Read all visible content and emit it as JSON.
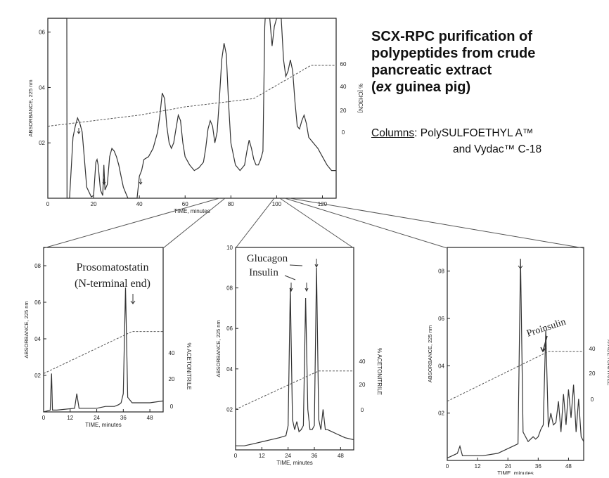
{
  "header": {
    "title_lines": [
      "SCX-RPC purification of",
      "polypeptides from crude",
      "pancreatic extract",
      "(ex guinea pig)"
    ],
    "title_italic_word": "ex",
    "columns_label": "Columns",
    "columns_line1": ": PolySULFOETHYL A™",
    "columns_line2": "and Vydac™ C-18"
  },
  "colors": {
    "trace": "#333333",
    "frame": "#222222",
    "background": "#ffffff"
  },
  "chart_data": [
    {
      "type": "line",
      "panel": "main",
      "xlabel": "TIME, minutes",
      "ylabel": "ABSORBANCE, 225 nm",
      "y2label": "% [CH3CN]",
      "xlim": [
        0,
        126
      ],
      "ylim": [
        0,
        0.65
      ],
      "y2lim": [
        -20,
        76
      ],
      "x_ticks": [
        "0",
        "20",
        "40",
        "60",
        "80",
        "100",
        "120"
      ],
      "y_ticks": [
        "02",
        "04",
        "06"
      ],
      "y2_ticks": [
        "0",
        "20",
        "40",
        "60"
      ],
      "series": [
        {
          "role": "absorbance",
          "points": [
            [
              0,
              0.65
            ],
            [
              8.3,
              0.65
            ],
            [
              8.4,
              0.0
            ],
            [
              9.5,
              0.0
            ],
            [
              11,
              0.22
            ],
            [
              12,
              0.26
            ],
            [
              13,
              0.29
            ],
            [
              14,
              0.27
            ],
            [
              15,
              0.24
            ],
            [
              16,
              0.14
            ],
            [
              17,
              0.04
            ],
            [
              19,
              0.005
            ],
            [
              20,
              0.01
            ],
            [
              21,
              0.13
            ],
            [
              21.5,
              0.14
            ],
            [
              22,
              0.12
            ],
            [
              23,
              0.03
            ],
            [
              24,
              0.01
            ],
            [
              24.5,
              0.12
            ],
            [
              25,
              0.03
            ],
            [
              26,
              0.05
            ],
            [
              27,
              0.15
            ],
            [
              28,
              0.18
            ],
            [
              29,
              0.17
            ],
            [
              30,
              0.15
            ],
            [
              31,
              0.12
            ],
            [
              32,
              0.08
            ],
            [
              33,
              0.04
            ],
            [
              34,
              0.02
            ],
            [
              35,
              0.0
            ],
            [
              39,
              0.0
            ],
            [
              40,
              0.08
            ],
            [
              41,
              0.1
            ],
            [
              42,
              0.14
            ],
            [
              44,
              0.15
            ],
            [
              46,
              0.18
            ],
            [
              48,
              0.24
            ],
            [
              49,
              0.3
            ],
            [
              50,
              0.38
            ],
            [
              51,
              0.36
            ],
            [
              52,
              0.26
            ],
            [
              53,
              0.2
            ],
            [
              54,
              0.18
            ],
            [
              55,
              0.2
            ],
            [
              56,
              0.25
            ],
            [
              57,
              0.3
            ],
            [
              58,
              0.28
            ],
            [
              59,
              0.2
            ],
            [
              60,
              0.15
            ],
            [
              62,
              0.12
            ],
            [
              64,
              0.1
            ],
            [
              66,
              0.11
            ],
            [
              68,
              0.13
            ],
            [
              69,
              0.18
            ],
            [
              70,
              0.25
            ],
            [
              71,
              0.28
            ],
            [
              72,
              0.26
            ],
            [
              73,
              0.2
            ],
            [
              74,
              0.24
            ],
            [
              75,
              0.36
            ],
            [
              76,
              0.5
            ],
            [
              77,
              0.56
            ],
            [
              78,
              0.52
            ],
            [
              79,
              0.34
            ],
            [
              80,
              0.2
            ],
            [
              82,
              0.12
            ],
            [
              84,
              0.1
            ],
            [
              86,
              0.12
            ],
            [
              87,
              0.17
            ],
            [
              88,
              0.21
            ],
            [
              89,
              0.18
            ],
            [
              90,
              0.14
            ],
            [
              91,
              0.12
            ],
            [
              92,
              0.12
            ],
            [
              93,
              0.14
            ],
            [
              94,
              0.17
            ],
            [
              94.8,
              0.62
            ],
            [
              95,
              0.65
            ],
            [
              97,
              0.65
            ],
            [
              98,
              0.55
            ],
            [
              99,
              0.62
            ],
            [
              100,
              0.65
            ],
            [
              101,
              0.65
            ],
            [
              102,
              0.65
            ],
            [
              103,
              0.5
            ],
            [
              104,
              0.44
            ],
            [
              105,
              0.46
            ],
            [
              106,
              0.5
            ],
            [
              107,
              0.46
            ],
            [
              108,
              0.35
            ],
            [
              109,
              0.26
            ],
            [
              110,
              0.25
            ],
            [
              111,
              0.28
            ],
            [
              112,
              0.3
            ],
            [
              113,
              0.27
            ],
            [
              114,
              0.22
            ],
            [
              116,
              0.2
            ],
            [
              118,
              0.18
            ],
            [
              120,
              0.15
            ],
            [
              122,
              0.12
            ],
            [
              124,
              0.1
            ],
            [
              126,
              0.1
            ]
          ]
        },
        {
          "role": "gradient",
          "points": [
            [
              0,
              0.26
            ],
            [
              20,
              0.28
            ],
            [
              40,
              0.3
            ],
            [
              60,
              0.33
            ],
            [
              80,
              0.35
            ],
            [
              90,
              0.36
            ],
            [
              115,
              0.48
            ],
            [
              126,
              0.48
            ]
          ]
        }
      ]
    },
    {
      "type": "line",
      "panel": "inset-left",
      "annotations": [
        "Prosomatostatin",
        "(N-terminal end)"
      ],
      "xlabel": "TIME, minutes",
      "ylabel": "ABSORBANCE, 225 nm",
      "y2label": "% ACETONITRILE",
      "xlim": [
        0,
        54
      ],
      "ylim": [
        0,
        0.9
      ],
      "x_ticks": [
        "0",
        "12",
        "24",
        "36",
        "48"
      ],
      "y_ticks": [
        "02",
        "04",
        "06",
        "08"
      ],
      "y2_ticks": [
        "0",
        "20",
        "40"
      ],
      "series": [
        {
          "role": "absorbance",
          "points": [
            [
              0,
              0.0
            ],
            [
              3,
              0.01
            ],
            [
              3.6,
              0.21
            ],
            [
              4,
              0.01
            ],
            [
              6,
              0.01
            ],
            [
              14,
              0.02
            ],
            [
              15,
              0.1
            ],
            [
              16,
              0.02
            ],
            [
              20,
              0.02
            ],
            [
              24,
              0.02
            ],
            [
              28,
              0.03
            ],
            [
              32,
              0.03
            ],
            [
              34,
              0.04
            ],
            [
              35,
              0.05
            ],
            [
              36,
              0.1
            ],
            [
              37,
              0.68
            ],
            [
              38,
              0.08
            ],
            [
              40,
              0.05
            ],
            [
              44,
              0.05
            ],
            [
              48,
              0.05
            ],
            [
              54,
              0.06
            ]
          ]
        },
        {
          "role": "gradient",
          "points": [
            [
              0,
              0.21
            ],
            [
              40,
              0.44
            ],
            [
              54,
              0.44
            ]
          ]
        }
      ]
    },
    {
      "type": "line",
      "panel": "inset-middle",
      "annotations": [
        "Glucagon",
        "Insulin"
      ],
      "xlabel": "TIME, minutes",
      "ylabel": "ABSORBANCE, 225 nm",
      "y2label": "% ACETONITRILE",
      "xlim": [
        0,
        54
      ],
      "ylim": [
        0,
        1.0
      ],
      "x_ticks": [
        "0",
        "12",
        "24",
        "36",
        "48"
      ],
      "y_ticks": [
        "02",
        "04",
        "06",
        "08",
        "10"
      ],
      "y2_ticks": [
        "0",
        "20",
        "40"
      ],
      "series": [
        {
          "role": "absorbance",
          "points": [
            [
              0,
              0.02
            ],
            [
              4,
              0.02
            ],
            [
              8,
              0.03
            ],
            [
              12,
              0.04
            ],
            [
              16,
              0.05
            ],
            [
              20,
              0.06
            ],
            [
              23,
              0.07
            ],
            [
              24,
              0.12
            ],
            [
              25,
              0.8
            ],
            [
              26,
              0.15
            ],
            [
              27,
              0.1
            ],
            [
              28,
              0.14
            ],
            [
              29,
              0.09
            ],
            [
              30,
              0.1
            ],
            [
              31,
              0.12
            ],
            [
              32,
              0.75
            ],
            [
              33,
              0.2
            ],
            [
              34,
              0.1
            ],
            [
              35,
              0.1
            ],
            [
              36,
              0.12
            ],
            [
              37,
              0.9
            ],
            [
              38,
              0.15
            ],
            [
              39,
              0.1
            ],
            [
              40,
              0.2
            ],
            [
              41,
              0.1
            ],
            [
              42,
              0.1
            ],
            [
              44,
              0.09
            ],
            [
              46,
              0.08
            ],
            [
              48,
              0.07
            ],
            [
              50,
              0.06
            ],
            [
              54,
              0.05
            ]
          ]
        },
        {
          "role": "gradient",
          "points": [
            [
              0,
              0.2
            ],
            [
              38,
              0.39
            ],
            [
              54,
              0.39
            ]
          ]
        }
      ]
    },
    {
      "type": "line",
      "panel": "inset-right",
      "annotations": [
        "Proinsulin"
      ],
      "xlabel": "TIME, minutes",
      "ylabel": "ABSORBANCE, 225 nm",
      "y2label": "% ACETONITRILE",
      "xlim": [
        0,
        54
      ],
      "ylim": [
        0,
        0.9
      ],
      "x_ticks": [
        "0",
        "12",
        "24",
        "36",
        "48"
      ],
      "y_ticks": [
        "02",
        "04",
        "06",
        "08"
      ],
      "y2_ticks": [
        "0",
        "20",
        "40"
      ],
      "series": [
        {
          "role": "absorbance",
          "points": [
            [
              0,
              0.01
            ],
            [
              2,
              0.02
            ],
            [
              4,
              0.03
            ],
            [
              5,
              0.06
            ],
            [
              6,
              0.02
            ],
            [
              10,
              0.02
            ],
            [
              14,
              0.02
            ],
            [
              20,
              0.03
            ],
            [
              24,
              0.05
            ],
            [
              26,
              0.06
            ],
            [
              28,
              0.07
            ],
            [
              29,
              0.85
            ],
            [
              30,
              0.12
            ],
            [
              32,
              0.08
            ],
            [
              34,
              0.1
            ],
            [
              35,
              0.09
            ],
            [
              36,
              0.1
            ],
            [
              37,
              0.13
            ],
            [
              38,
              0.15
            ],
            [
              39,
              0.55
            ],
            [
              40,
              0.14
            ],
            [
              41,
              0.2
            ],
            [
              42,
              0.15
            ],
            [
              43,
              0.16
            ],
            [
              44,
              0.25
            ],
            [
              45,
              0.12
            ],
            [
              46,
              0.28
            ],
            [
              47,
              0.15
            ],
            [
              48,
              0.3
            ],
            [
              49,
              0.18
            ],
            [
              50,
              0.32
            ],
            [
              51,
              0.12
            ],
            [
              52,
              0.26
            ],
            [
              53,
              0.1
            ],
            [
              54,
              0.08
            ]
          ]
        },
        {
          "role": "gradient",
          "points": [
            [
              0,
              0.25
            ],
            [
              40,
              0.46
            ],
            [
              54,
              0.46
            ]
          ]
        }
      ]
    }
  ]
}
